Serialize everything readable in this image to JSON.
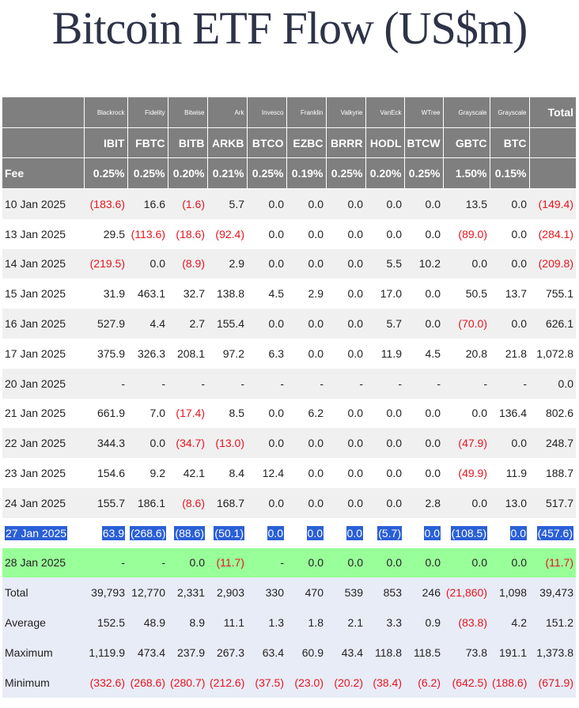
{
  "title": "Bitcoin ETF Flow (US$m)",
  "header": {
    "issuers": [
      "Blackrock",
      "Fidelity",
      "Bitwise",
      "Ark",
      "Invesco",
      "Franklin",
      "Valkyrie",
      "VanEck",
      "WTree",
      "Grayscale",
      "Grayscale"
    ],
    "total_label": "Total",
    "tickers": [
      "IBIT",
      "FBTC",
      "BITB",
      "ARKB",
      "BTCO",
      "EZBC",
      "BRRR",
      "HODL",
      "BTCW",
      "GBTC",
      "BTC"
    ],
    "fee_label": "Fee",
    "fees": [
      "0.25%",
      "0.25%",
      "0.20%",
      "0.21%",
      "0.25%",
      "0.19%",
      "0.25%",
      "0.20%",
      "0.25%",
      "1.50%",
      "0.15%"
    ]
  },
  "rows": [
    {
      "date": "10 Jan 2025",
      "values": [
        "(183.6)",
        "16.6",
        "(1.6)",
        "5.7",
        "0.0",
        "0.0",
        "0.0",
        "0.0",
        "0.0",
        "13.5",
        "0.0"
      ],
      "total": "(149.4)"
    },
    {
      "date": "13 Jan 2025",
      "values": [
        "29.5",
        "(113.6)",
        "(18.6)",
        "(92.4)",
        "0.0",
        "0.0",
        "0.0",
        "0.0",
        "0.0",
        "(89.0)",
        "0.0"
      ],
      "total": "(284.1)"
    },
    {
      "date": "14 Jan 2025",
      "values": [
        "(219.5)",
        "0.0",
        "(8.9)",
        "2.9",
        "0.0",
        "0.0",
        "0.0",
        "5.5",
        "10.2",
        "0.0",
        "0.0"
      ],
      "total": "(209.8)"
    },
    {
      "date": "15 Jan 2025",
      "values": [
        "31.9",
        "463.1",
        "32.7",
        "138.8",
        "4.5",
        "2.9",
        "0.0",
        "17.0",
        "0.0",
        "50.5",
        "13.7"
      ],
      "total": "755.1"
    },
    {
      "date": "16 Jan 2025",
      "values": [
        "527.9",
        "4.4",
        "2.7",
        "155.4",
        "0.0",
        "0.0",
        "0.0",
        "5.7",
        "0.0",
        "(70.0)",
        "0.0"
      ],
      "total": "626.1"
    },
    {
      "date": "17 Jan 2025",
      "values": [
        "375.9",
        "326.3",
        "208.1",
        "97.2",
        "6.3",
        "0.0",
        "0.0",
        "11.9",
        "4.5",
        "20.8",
        "21.8"
      ],
      "total": "1,072.8"
    },
    {
      "date": "20 Jan 2025",
      "values": [
        "-",
        "-",
        "-",
        "-",
        "-",
        "-",
        "-",
        "-",
        "-",
        "-",
        "-"
      ],
      "total": "0.0"
    },
    {
      "date": "21 Jan 2025",
      "values": [
        "661.9",
        "7.0",
        "(17.4)",
        "8.5",
        "0.0",
        "6.2",
        "0.0",
        "0.0",
        "0.0",
        "0.0",
        "136.4"
      ],
      "total": "802.6"
    },
    {
      "date": "22 Jan 2025",
      "values": [
        "344.3",
        "0.0",
        "(34.7)",
        "(13.0)",
        "0.0",
        "0.0",
        "0.0",
        "0.0",
        "0.0",
        "(47.9)",
        "0.0"
      ],
      "total": "248.7"
    },
    {
      "date": "23 Jan 2025",
      "values": [
        "154.6",
        "9.2",
        "42.1",
        "8.4",
        "12.4",
        "0.0",
        "0.0",
        "0.0",
        "0.0",
        "(49.9)",
        "11.9"
      ],
      "total": "188.7"
    },
    {
      "date": "24 Jan 2025",
      "values": [
        "155.7",
        "186.1",
        "(8.6)",
        "168.7",
        "0.0",
        "0.0",
        "0.0",
        "0.0",
        "2.8",
        "0.0",
        "13.0"
      ],
      "total": "517.7"
    },
    {
      "date": "27 Jan 2025",
      "values": [
        "63.9",
        "(268.6)",
        "(88.6)",
        "(50.1)",
        "0.0",
        "0.0",
        "0.0",
        "(5.7)",
        "0.0",
        "(108.5)",
        "0.0"
      ],
      "total": "(457.6)",
      "selected": true
    },
    {
      "date": "28 Jan 2025",
      "values": [
        "-",
        "-",
        "0.0",
        "(11.7)",
        "-",
        "0.0",
        "0.0",
        "0.0",
        "0.0",
        "0.0",
        "0.0"
      ],
      "total": "(11.7)",
      "highlight": true
    }
  ],
  "stats": [
    {
      "label": "Total",
      "values": [
        "39,793",
        "12,770",
        "2,331",
        "2,903",
        "330",
        "470",
        "539",
        "853",
        "246",
        "(21,860)",
        "1,098"
      ],
      "total": "39,473"
    },
    {
      "label": "Average",
      "values": [
        "152.5",
        "48.9",
        "8.9",
        "11.1",
        "1.3",
        "1.8",
        "2.1",
        "3.3",
        "0.9",
        "(83.8)",
        "4.2"
      ],
      "total": "151.2"
    },
    {
      "label": "Maximum",
      "values": [
        "1,119.9",
        "473.4",
        "237.9",
        "267.3",
        "63.4",
        "60.9",
        "43.4",
        "118.8",
        "118.5",
        "73.8",
        "191.1"
      ],
      "total": "1,373.8"
    },
    {
      "label": "Minimum",
      "values": [
        "(332.6)",
        "(268.6)",
        "(280.7)",
        "(212.6)",
        "(37.5)",
        "(23.0)",
        "(20.2)",
        "(38.4)",
        "(6.2)",
        "(642.5)",
        "(188.6)"
      ],
      "total": "(671.9)"
    }
  ],
  "colors": {
    "negative": "#e6141e",
    "header_bg": "#7f7f7f",
    "highlight_row": "#99ff99",
    "selection": "#2a5fd6",
    "stats_bg": "#e8ecf7"
  }
}
